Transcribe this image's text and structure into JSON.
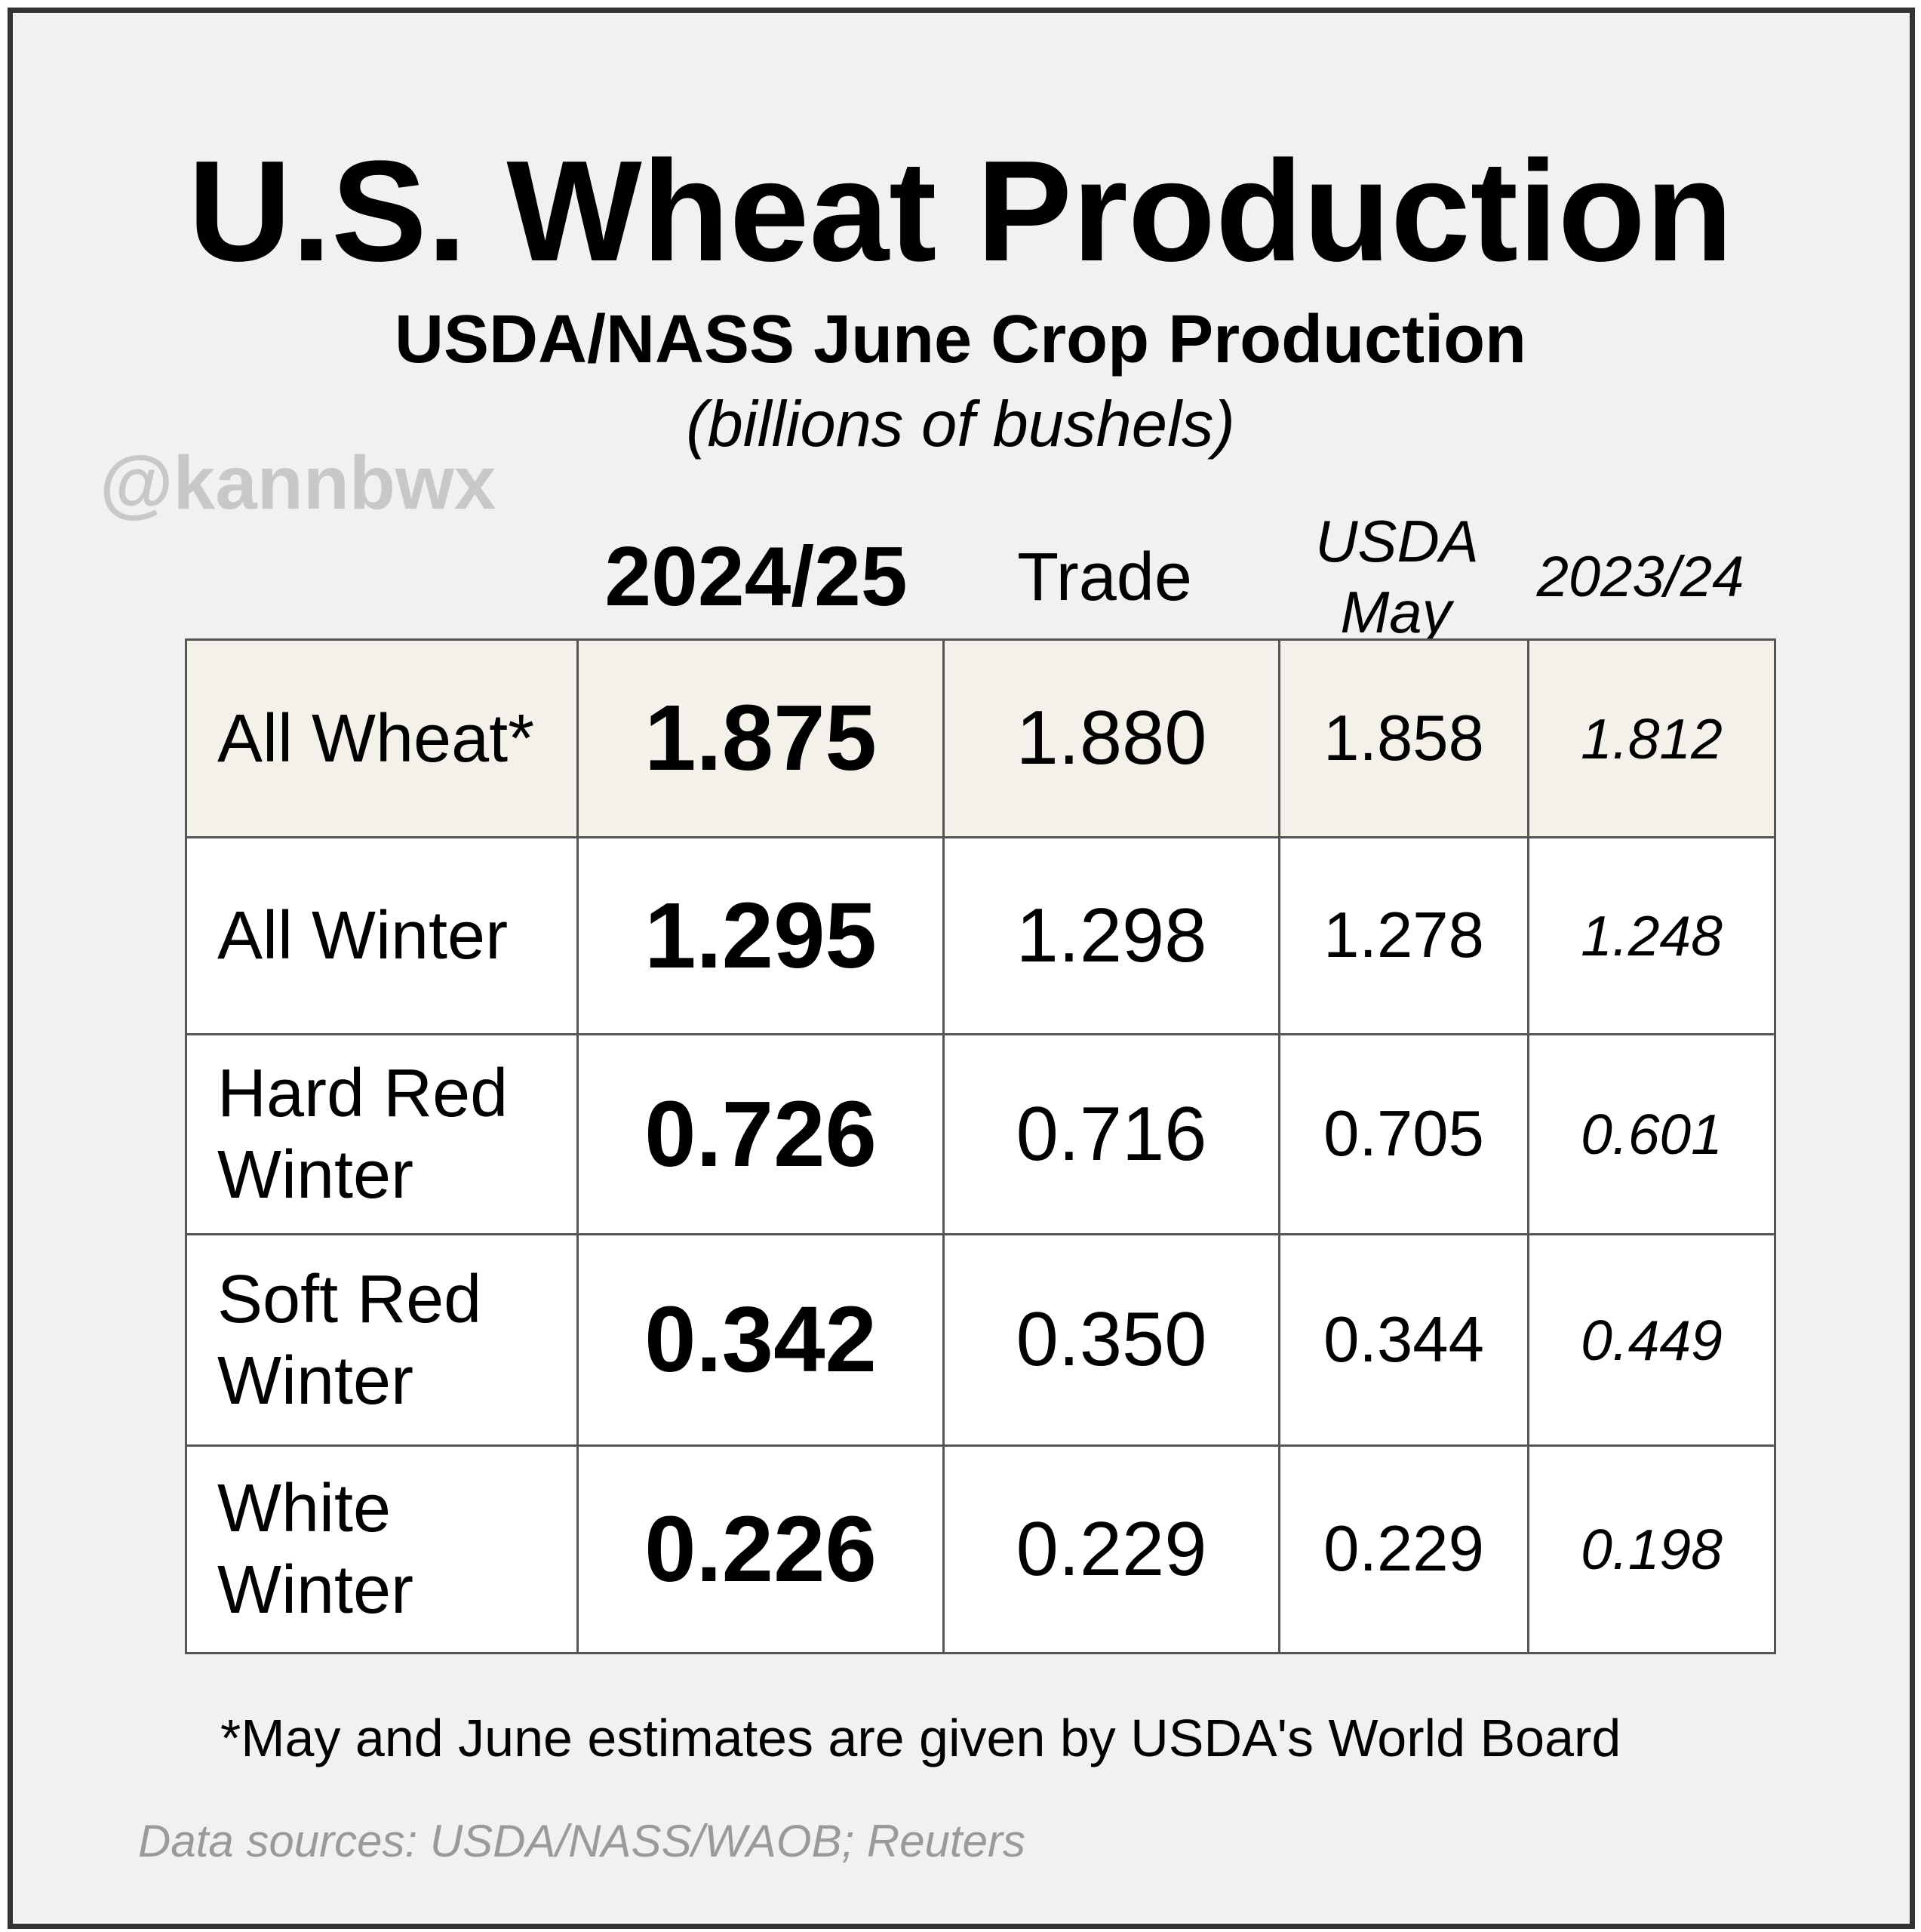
{
  "header": {
    "title": "U.S. Wheat Production",
    "subtitle": "USDA/NASS June Crop Production",
    "unit": "(billions of bushels)",
    "watermark": "@kannbwx"
  },
  "table": {
    "columns": [
      "2024/25",
      "Trade",
      "USDA May",
      "2023/24"
    ],
    "rows": [
      [
        "All Wheat*",
        "1.875",
        "1.880",
        "1.858",
        "1.812"
      ],
      [
        "All Winter",
        "1.295",
        "1.298",
        "1.278",
        "1.248"
      ],
      [
        "Hard Red Winter",
        "0.726",
        "0.716",
        "0.705",
        "0.601"
      ],
      [
        "Soft Red Winter",
        "0.342",
        "0.350",
        "0.344",
        "0.449"
      ],
      [
        "White Winter",
        "0.226",
        "0.229",
        "0.229",
        "0.198"
      ]
    ]
  },
  "footnote": "*May and June estimates are given by USDA's World Board",
  "source": "Data sources: USDA/NASS/WAOB; Reuters"
}
